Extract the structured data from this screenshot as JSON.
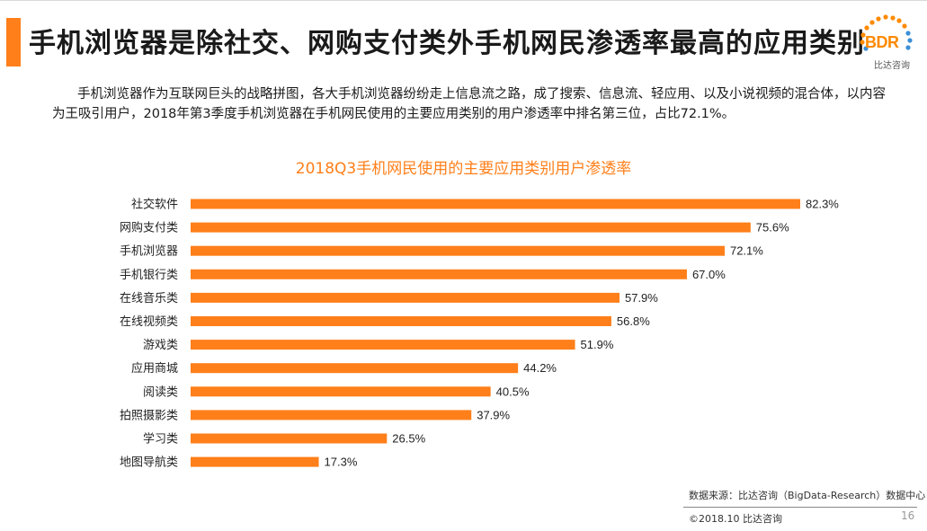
{
  "header": {
    "title": "手机浏览器是除社交、网购支付类外手机网民渗透率最高的应用类别"
  },
  "logo": {
    "text": "BDR",
    "subtitle": "比达咨询"
  },
  "description": "手机浏览器作为互联网巨头的战略拼图，各大手机浏览器纷纷走上信息流之路，成了搜索、信息流、轻应用、以及小说视频的混合体，以内容为王吸引用户，2018年第3季度手机浏览器在手机网民使用的主要应用类别的用户渗透率中排名第三位，占比72.1%。",
  "colors": {
    "accent": "#ff7f1a",
    "bar": "#ff7f1a"
  },
  "chart_data": {
    "type": "bar",
    "orientation": "horizontal",
    "title": "2018Q3手机网民使用的主要应用类别用户渗透率",
    "categories": [
      "社交软件",
      "网购支付类",
      "手机浏览器",
      "手机银行类",
      "在线音乐类",
      "在线视频类",
      "游戏类",
      "应用商城",
      "阅读类",
      "拍照摄影类",
      "学习类",
      "地图导航类"
    ],
    "values": [
      82.3,
      75.6,
      72.1,
      67.0,
      57.9,
      56.8,
      51.9,
      44.2,
      40.5,
      37.9,
      26.5,
      17.3
    ],
    "value_labels": [
      "82.3%",
      "75.6%",
      "72.1%",
      "67.0%",
      "57.9%",
      "56.8%",
      "51.9%",
      "44.2%",
      "40.5%",
      "37.9%",
      "26.5%",
      "17.3%"
    ],
    "unit": "%",
    "xlim": [
      0,
      82.3
    ],
    "grid": false,
    "legend": "none"
  },
  "footer": {
    "source": "数据来源：比达咨询（BigData-Research）数据中心",
    "copyright": "©2018.10 比达咨询",
    "page": "16"
  }
}
